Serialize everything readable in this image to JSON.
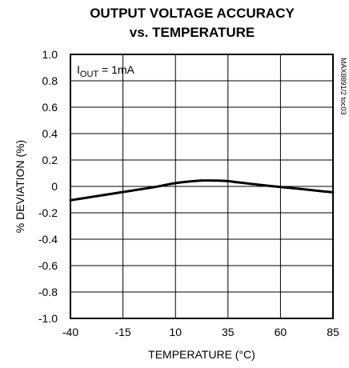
{
  "chart_data": {
    "type": "line",
    "title_line1": "OUTPUT VOLTAGE ACCURACY",
    "title_line2": "vs. TEMPERATURE",
    "xlabel": "TEMPERATURE (°C)",
    "ylabel": "% DEVIATION (%)",
    "xlim": [
      -40,
      85
    ],
    "ylim": [
      -1.0,
      1.0
    ],
    "x_ticks": [
      "-40",
      "-15",
      "10",
      "35",
      "60",
      "85"
    ],
    "y_ticks": [
      "1.0",
      "0.8",
      "0.6",
      "0.4",
      "0.2",
      "0",
      "-0.2",
      "-0.4",
      "-0.6",
      "-0.8",
      "-1.0"
    ],
    "grid": true,
    "annotation": {
      "prefix": "I",
      "subscript": "OUT",
      "suffix": " = 1mA"
    },
    "figure_id": "MAX8891/2 toc03",
    "series": [
      {
        "x": [
          -40,
          -30,
          -20,
          -10,
          0,
          10,
          20,
          25,
          30,
          35,
          40,
          50,
          60,
          70,
          80,
          85
        ],
        "y": [
          -0.105,
          -0.08,
          -0.055,
          -0.03,
          -0.005,
          0.025,
          0.042,
          0.045,
          0.044,
          0.04,
          0.03,
          0.012,
          -0.005,
          -0.02,
          -0.037,
          -0.045
        ]
      }
    ]
  }
}
